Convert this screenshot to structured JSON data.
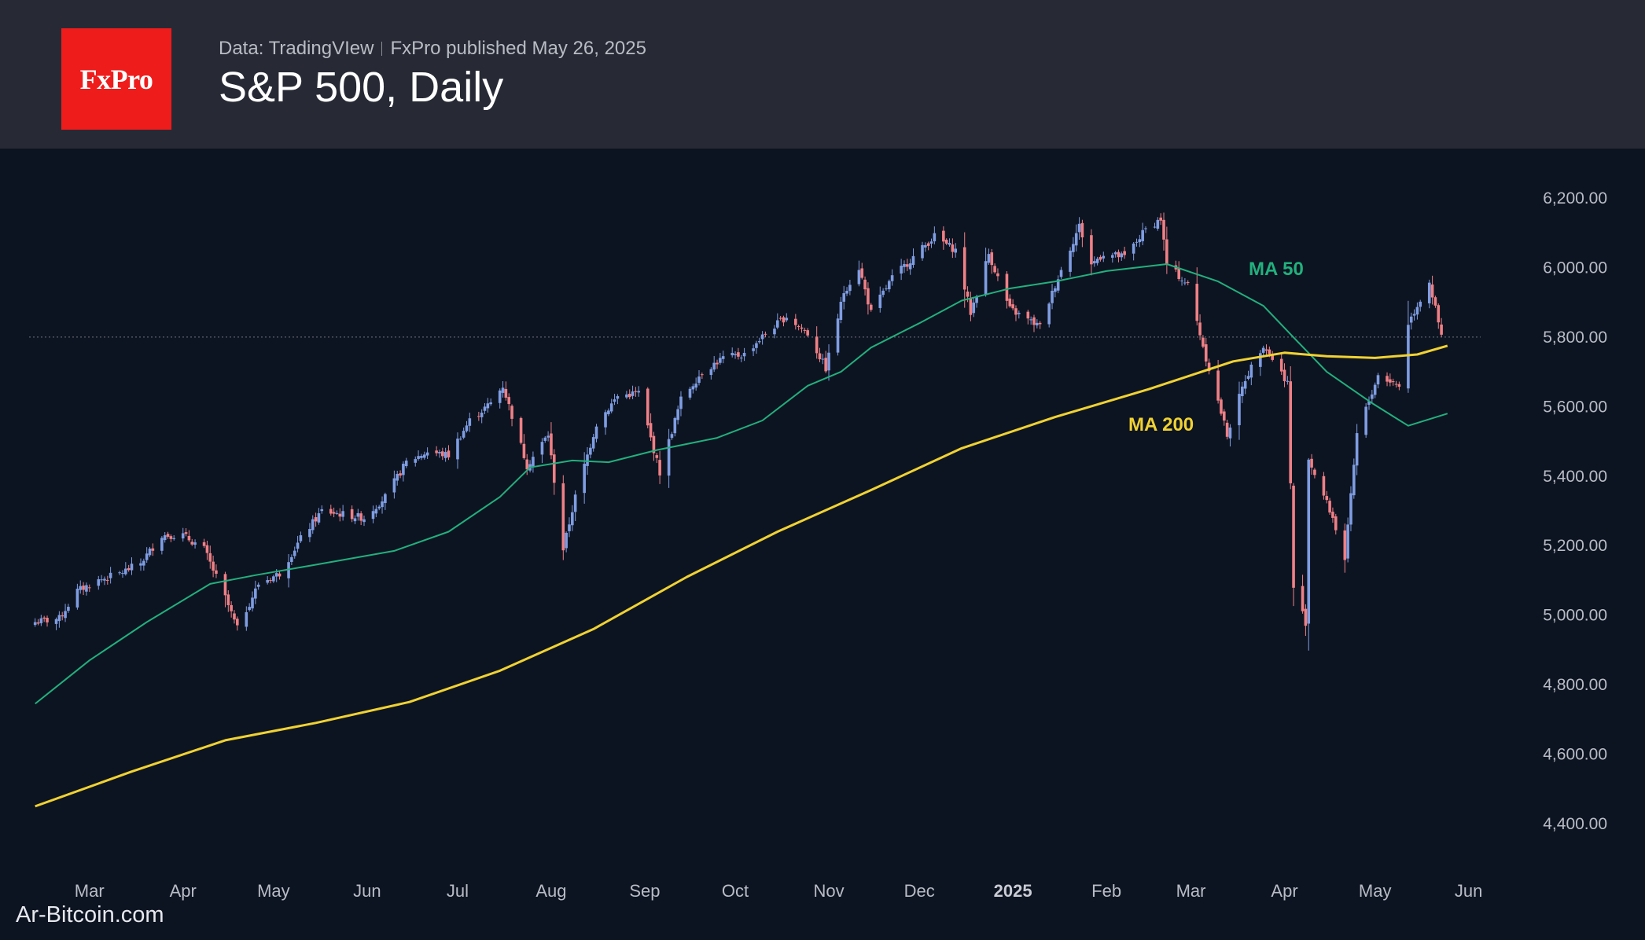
{
  "header": {
    "logo": "FxPro",
    "source": "Data: TradingVIew",
    "published": "FxPro published May 26, 2025",
    "title": "S&P 500, Daily"
  },
  "watermark": "Ar-Bitcoin.com",
  "colors": {
    "background": "#0d1421",
    "header_bg": "#272a35",
    "logo_red": "#ef1c1c",
    "candle_up": "#7f9de2",
    "candle_down": "#ef8086",
    "ma50": "#22b07d",
    "ma200": "#f0d232"
  },
  "chart_data": {
    "type": "candlestick",
    "title": "S&P 500, Daily",
    "x_ticks": [
      "Mar",
      "Apr",
      "May",
      "Jun",
      "Jul",
      "Aug",
      "Sep",
      "Oct",
      "Nov",
      "Dec",
      "2025",
      "Feb",
      "Mar",
      "Apr",
      "May",
      "Jun"
    ],
    "x_tick_dates": [
      "2024-03-01",
      "2024-04-01",
      "2024-05-01",
      "2024-06-01",
      "2024-07-01",
      "2024-08-01",
      "2024-09-01",
      "2024-10-01",
      "2024-11-01",
      "2024-12-01",
      "2025-01-01",
      "2025-02-01",
      "2025-03-01",
      "2025-04-01",
      "2025-05-01",
      "2025-06-01"
    ],
    "y_ticks": [
      "6,200.00",
      "6,000.00",
      "5,800.00",
      "5,600.00",
      "5,400.00",
      "5,200.00",
      "5,000.00",
      "4,800.00",
      "4,600.00",
      "4,400.00"
    ],
    "ylim": [
      4320,
      6330
    ],
    "x_range": [
      "2024-02-10",
      "2025-06-05"
    ],
    "reference_line": 5800,
    "close_series": [
      [
        "2024-02-12",
        4980
      ],
      [
        "2024-02-20",
        4990
      ],
      [
        "2024-02-26",
        5070
      ],
      [
        "2024-03-04",
        5100
      ],
      [
        "2024-03-11",
        5120
      ],
      [
        "2024-03-18",
        5150
      ],
      [
        "2024-03-25",
        5230
      ],
      [
        "2024-04-01",
        5230
      ],
      [
        "2024-04-08",
        5190
      ],
      [
        "2024-04-15",
        5050
      ],
      [
        "2024-04-19",
        4960
      ],
      [
        "2024-04-26",
        5090
      ],
      [
        "2024-05-03",
        5120
      ],
      [
        "2024-05-10",
        5220
      ],
      [
        "2024-05-17",
        5300
      ],
      [
        "2024-05-24",
        5290
      ],
      [
        "2024-05-31",
        5280
      ],
      [
        "2024-06-07",
        5340
      ],
      [
        "2024-06-14",
        5440
      ],
      [
        "2024-06-21",
        5470
      ],
      [
        "2024-06-28",
        5460
      ],
      [
        "2024-07-05",
        5560
      ],
      [
        "2024-07-12",
        5610
      ],
      [
        "2024-07-16",
        5660
      ],
      [
        "2024-07-24",
        5430
      ],
      [
        "2024-07-31",
        5520
      ],
      [
        "2024-08-05",
        5190
      ],
      [
        "2024-08-09",
        5340
      ],
      [
        "2024-08-16",
        5550
      ],
      [
        "2024-08-23",
        5630
      ],
      [
        "2024-08-30",
        5640
      ],
      [
        "2024-09-06",
        5410
      ],
      [
        "2024-09-13",
        5620
      ],
      [
        "2024-09-20",
        5700
      ],
      [
        "2024-09-27",
        5740
      ],
      [
        "2024-10-04",
        5750
      ],
      [
        "2024-10-11",
        5810
      ],
      [
        "2024-10-18",
        5860
      ],
      [
        "2024-10-25",
        5810
      ],
      [
        "2024-10-31",
        5710
      ],
      [
        "2024-11-06",
        5930
      ],
      [
        "2024-11-11",
        6000
      ],
      [
        "2024-11-15",
        5870
      ],
      [
        "2024-11-22",
        5970
      ],
      [
        "2024-11-29",
        6030
      ],
      [
        "2024-12-06",
        6090
      ],
      [
        "2024-12-13",
        6050
      ],
      [
        "2024-12-18",
        5870
      ],
      [
        "2024-12-24",
        6040
      ],
      [
        "2024-12-31",
        5880
      ],
      [
        "2025-01-10",
        5830
      ],
      [
        "2025-01-15",
        5950
      ],
      [
        "2025-01-23",
        6120
      ],
      [
        "2025-01-27",
        6010
      ],
      [
        "2025-01-31",
        6040
      ],
      [
        "2025-02-07",
        6030
      ],
      [
        "2025-02-14",
        6110
      ],
      [
        "2025-02-19",
        6140
      ],
      [
        "2025-02-21",
        6010
      ],
      [
        "2025-02-28",
        5950
      ],
      [
        "2025-03-06",
        5740
      ],
      [
        "2025-03-13",
        5520
      ],
      [
        "2025-03-19",
        5680
      ],
      [
        "2025-03-25",
        5780
      ],
      [
        "2025-04-02",
        5670
      ],
      [
        "2025-04-04",
        5080
      ],
      [
        "2025-04-08",
        4980
      ],
      [
        "2025-04-09",
        5450
      ],
      [
        "2025-04-17",
        5280
      ],
      [
        "2025-04-21",
        5160
      ],
      [
        "2025-04-25",
        5520
      ],
      [
        "2025-05-02",
        5690
      ],
      [
        "2025-05-09",
        5660
      ],
      [
        "2025-05-12",
        5840
      ],
      [
        "2025-05-19",
        5960
      ],
      [
        "2025-05-22",
        5840
      ],
      [
        "2025-05-23",
        5800
      ]
    ],
    "series": [
      {
        "name": "MA 50",
        "points": [
          [
            "2024-02-12",
            4745
          ],
          [
            "2024-03-01",
            4870
          ],
          [
            "2024-03-20",
            4980
          ],
          [
            "2024-04-10",
            5090
          ],
          [
            "2024-04-25",
            5115
          ],
          [
            "2024-05-15",
            5145
          ],
          [
            "2024-06-10",
            5185
          ],
          [
            "2024-06-28",
            5240
          ],
          [
            "2024-07-15",
            5340
          ],
          [
            "2024-07-25",
            5425
          ],
          [
            "2024-08-08",
            5445
          ],
          [
            "2024-08-20",
            5440
          ],
          [
            "2024-09-05",
            5475
          ],
          [
            "2024-09-25",
            5510
          ],
          [
            "2024-10-10",
            5560
          ],
          [
            "2024-10-25",
            5660
          ],
          [
            "2024-11-05",
            5700
          ],
          [
            "2024-11-15",
            5770
          ],
          [
            "2024-12-01",
            5840
          ],
          [
            "2024-12-15",
            5905
          ],
          [
            "2024-12-31",
            5940
          ],
          [
            "2025-01-15",
            5960
          ],
          [
            "2025-02-01",
            5990
          ],
          [
            "2025-02-21",
            6010
          ],
          [
            "2025-03-10",
            5960
          ],
          [
            "2025-03-25",
            5890
          ],
          [
            "2025-04-05",
            5790
          ],
          [
            "2025-04-15",
            5700
          ],
          [
            "2025-04-30",
            5610
          ],
          [
            "2025-05-12",
            5545
          ],
          [
            "2025-05-25",
            5580
          ]
        ]
      },
      {
        "name": "MA 200",
        "points": [
          [
            "2024-02-12",
            4450
          ],
          [
            "2024-03-15",
            4550
          ],
          [
            "2024-04-15",
            4640
          ],
          [
            "2024-05-15",
            4690
          ],
          [
            "2024-06-15",
            4750
          ],
          [
            "2024-07-15",
            4840
          ],
          [
            "2024-08-15",
            4960
          ],
          [
            "2024-09-15",
            5110
          ],
          [
            "2024-10-15",
            5240
          ],
          [
            "2024-11-15",
            5360
          ],
          [
            "2024-12-15",
            5480
          ],
          [
            "2025-01-15",
            5570
          ],
          [
            "2025-02-15",
            5650
          ],
          [
            "2025-03-15",
            5730
          ],
          [
            "2025-04-01",
            5755
          ],
          [
            "2025-04-15",
            5745
          ],
          [
            "2025-05-01",
            5740
          ],
          [
            "2025-05-15",
            5750
          ],
          [
            "2025-05-25",
            5775
          ]
        ]
      }
    ],
    "annotations": [
      "MA 50",
      "MA 200"
    ]
  }
}
